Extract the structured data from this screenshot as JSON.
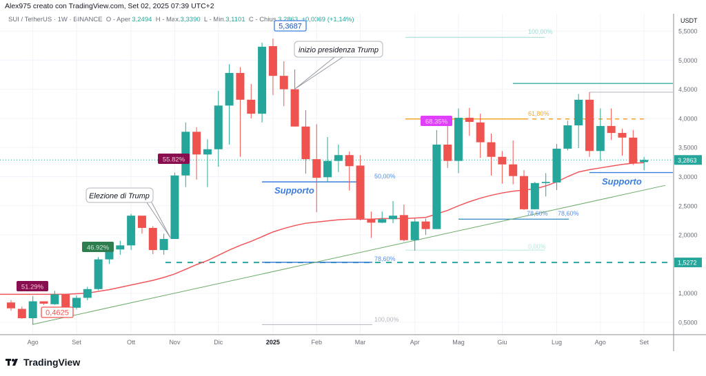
{
  "header": {
    "text": "Alex975 creato con TradingView.com, Set 02, 2025 07:39 UTC+2"
  },
  "legend": {
    "symbol": "SUI / TetherUS · 1W · BINANCE",
    "open_label": "O - Aper.",
    "open": "3,2494",
    "high_label": "H - Max.",
    "high": "3,3390",
    "low_label": "L - Min.",
    "low": "3,1101",
    "close_label": "C - Chius.",
    "close": "3,2863",
    "change": "+0,0369 (+1,14%)"
  },
  "logo": {
    "text": "TradingView"
  },
  "colors": {
    "up": "#26a69a",
    "down": "#ef5350",
    "ema": "#f0555a",
    "trend": "#6aaa6a",
    "support": "#3b7ddd",
    "fib61": "#f5a623"
  },
  "chart_data": {
    "type": "candlestick",
    "currency": "USDT",
    "ylim": [
      0.25,
      5.75
    ],
    "yticks": [
      "5,5000",
      "5,0000",
      "4,5000",
      "4,0000",
      "3,5000",
      "3,0000",
      "2,5000",
      "2,0000",
      "1,0000",
      "0,5000"
    ],
    "ytick_values": [
      5.5,
      5.0,
      4.5,
      4.0,
      3.5,
      3.0,
      2.5,
      2.0,
      1.0,
      0.5
    ],
    "xticks": [
      {
        "label": "Ago",
        "index": 2
      },
      {
        "label": "Set",
        "index": 6
      },
      {
        "label": "Ott",
        "index": 11
      },
      {
        "label": "Nov",
        "index": 15
      },
      {
        "label": "Dic",
        "index": 19
      },
      {
        "label": "2025",
        "index": 24,
        "bold": true
      },
      {
        "label": "Feb",
        "index": 28
      },
      {
        "label": "Mar",
        "index": 32
      },
      {
        "label": "Apr",
        "index": 37
      },
      {
        "label": "Mag",
        "index": 41
      },
      {
        "label": "Giu",
        "index": 45
      },
      {
        "label": "Lug",
        "index": 50
      },
      {
        "label": "Ago",
        "index": 54
      },
      {
        "label": "Set",
        "index": 58
      }
    ],
    "candles": [
      [
        0.84,
        0.88,
        0.7,
        0.74
      ],
      [
        0.73,
        0.77,
        0.56,
        0.57
      ],
      [
        0.57,
        0.95,
        0.4625,
        0.86
      ],
      [
        0.86,
        0.86,
        0.8,
        0.82
      ],
      [
        0.81,
        1.04,
        0.8,
        0.98
      ],
      [
        0.98,
        0.99,
        0.74,
        0.75
      ],
      [
        0.75,
        0.96,
        0.72,
        0.92
      ],
      [
        0.92,
        1.11,
        0.88,
        1.07
      ],
      [
        1.07,
        1.62,
        1.05,
        1.58
      ],
      [
        1.58,
        1.78,
        1.5,
        1.74
      ],
      [
        1.75,
        1.9,
        1.66,
        1.82
      ],
      [
        1.82,
        2.36,
        1.74,
        2.33
      ],
      [
        2.33,
        2.33,
        2.02,
        2.12
      ],
      [
        2.12,
        2.15,
        1.67,
        1.74
      ],
      [
        1.74,
        2.02,
        1.66,
        1.93
      ],
      [
        1.93,
        3.07,
        1.93,
        3.02
      ],
      [
        3.02,
        3.93,
        2.82,
        3.77
      ],
      [
        3.77,
        3.85,
        2.95,
        3.38
      ],
      [
        3.38,
        3.64,
        2.82,
        3.47
      ],
      [
        3.47,
        4.47,
        3.17,
        4.22
      ],
      [
        4.22,
        4.93,
        3.55,
        4.78
      ],
      [
        4.78,
        4.88,
        3.34,
        4.32
      ],
      [
        4.32,
        4.59,
        4.0,
        4.08
      ],
      [
        4.08,
        5.3,
        3.93,
        5.23
      ],
      [
        5.24,
        5.3687,
        4.4,
        4.73
      ],
      [
        4.73,
        4.98,
        4.21,
        4.5
      ],
      [
        4.5,
        4.84,
        3.86,
        3.86
      ],
      [
        3.86,
        4.14,
        3.05,
        3.3
      ],
      [
        3.3,
        3.9,
        2.39,
        2.98
      ],
      [
        2.99,
        3.68,
        2.9,
        3.27
      ],
      [
        3.27,
        3.55,
        3.08,
        3.37
      ],
      [
        3.37,
        3.43,
        2.76,
        3.18
      ],
      [
        3.19,
        3.37,
        2.25,
        2.28
      ],
      [
        2.27,
        2.4,
        1.95,
        2.21
      ],
      [
        2.21,
        2.4,
        2.2,
        2.27
      ],
      [
        2.27,
        2.58,
        2.2,
        2.33
      ],
      [
        2.34,
        2.52,
        1.89,
        1.91
      ],
      [
        1.91,
        2.28,
        1.73,
        2.23
      ],
      [
        2.23,
        2.28,
        2.0,
        2.1
      ],
      [
        2.1,
        3.8,
        2.1,
        3.55
      ],
      [
        3.55,
        3.92,
        3.15,
        3.27
      ],
      [
        3.27,
        4.17,
        3.06,
        4.01
      ],
      [
        4.01,
        4.18,
        3.7,
        3.94
      ],
      [
        3.93,
        4.08,
        3.32,
        3.59
      ],
      [
        3.59,
        3.74,
        3.02,
        3.34
      ],
      [
        3.34,
        3.44,
        2.88,
        3.21
      ],
      [
        3.21,
        3.62,
        2.87,
        3.01
      ],
      [
        3.01,
        3.11,
        2.43,
        2.44
      ],
      [
        2.44,
        2.91,
        2.44,
        2.89
      ],
      [
        2.89,
        3.06,
        2.66,
        2.91
      ],
      [
        2.9,
        3.56,
        2.77,
        3.48
      ],
      [
        3.48,
        3.96,
        3.45,
        3.88
      ],
      [
        3.88,
        4.42,
        3.49,
        4.32
      ],
      [
        4.32,
        4.45,
        3.34,
        3.44
      ],
      [
        3.44,
        4.17,
        3.27,
        3.87
      ],
      [
        3.87,
        4.17,
        3.63,
        3.75
      ],
      [
        3.75,
        3.82,
        3.36,
        3.67
      ],
      [
        3.67,
        3.8,
        3.2,
        3.23
      ],
      [
        3.2494,
        3.339,
        3.1101,
        3.2863
      ]
    ],
    "ema": [
      0.98,
      0.98,
      0.98,
      0.98,
      0.98,
      0.98,
      0.99,
      1.0,
      1.03,
      1.06,
      1.1,
      1.14,
      1.18,
      1.22,
      1.27,
      1.33,
      1.41,
      1.49,
      1.56,
      1.65,
      1.74,
      1.82,
      1.89,
      1.97,
      2.05,
      2.11,
      2.16,
      2.2,
      2.22,
      2.24,
      2.26,
      2.27,
      2.27,
      2.27,
      2.28,
      2.28,
      2.28,
      2.29,
      2.3,
      2.36,
      2.42,
      2.5,
      2.57,
      2.63,
      2.68,
      2.72,
      2.75,
      2.77,
      2.79,
      2.84,
      2.91,
      3.0,
      3.08,
      3.12,
      3.15,
      3.18,
      3.21,
      3.23,
      3.24
    ],
    "last_price_label": "3,2863",
    "level_label": "1,5272",
    "annotations": {
      "high_label": "5,3687",
      "low_label": "0,4625",
      "callout_election": "Elezione di Trump",
      "callout_presidency": "inizio presidenza Trump",
      "support_1": "Supporto",
      "support_2": "Supporto",
      "pct_tags": [
        "51.29%",
        "46.92%",
        "55.82%",
        "68.35%"
      ],
      "fib_left": [
        "50,00%",
        "78,60%",
        "100,00%"
      ],
      "fib_right": [
        "100,00%",
        "61,80%",
        "78,60%",
        "78,60%",
        "0,00%"
      ]
    }
  }
}
